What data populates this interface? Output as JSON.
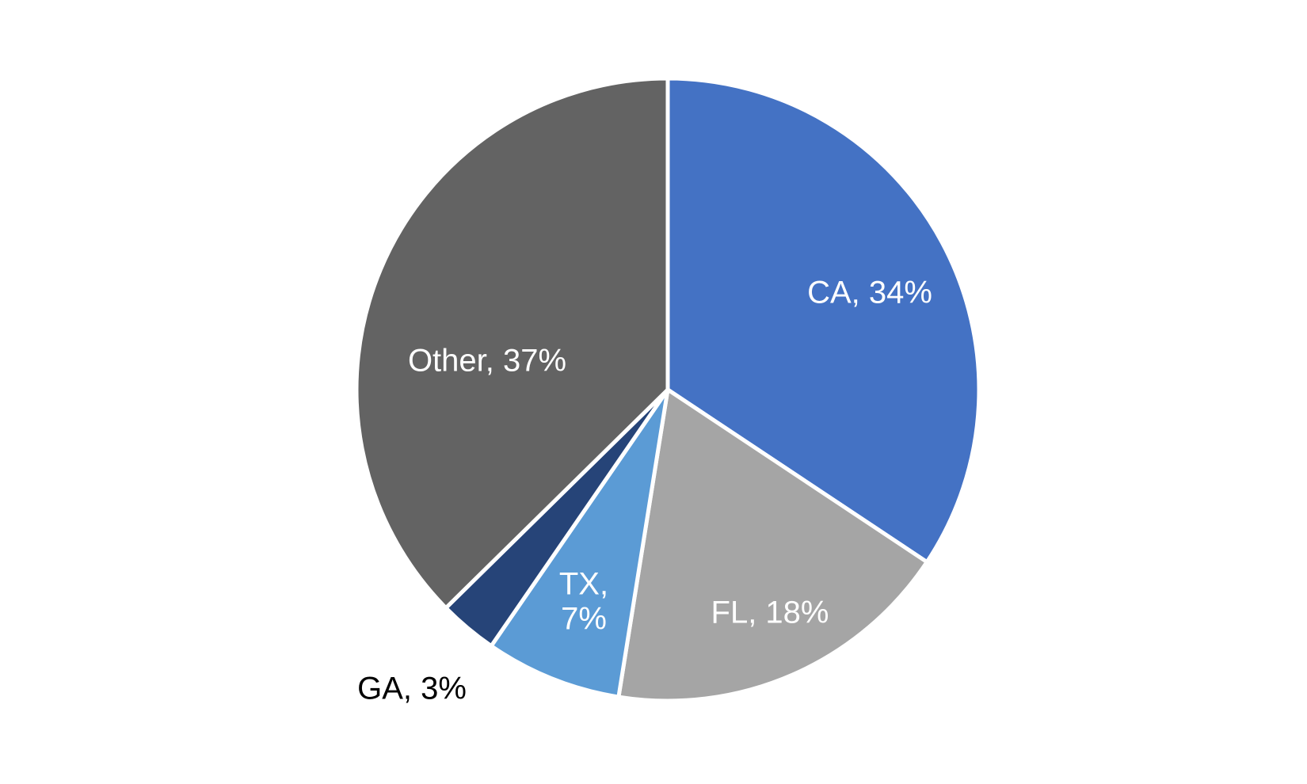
{
  "chart_data": {
    "type": "pie",
    "title": "",
    "start_angle_deg": 0,
    "direction": "clockwise",
    "slices": [
      {
        "label": "CA",
        "value": 34,
        "label_text": "CA, 34%",
        "color": "#4472C4",
        "label_color": "#FFFFFF"
      },
      {
        "label": "FL",
        "value": 18,
        "label_text": "FL, 18%",
        "color": "#A5A5A5",
        "label_color": "#FFFFFF"
      },
      {
        "label": "TX",
        "value": 7,
        "label_text": [
          "TX,",
          "7%"
        ],
        "color": "#5B9BD5",
        "label_color": "#FFFFFF"
      },
      {
        "label": "GA",
        "value": 3,
        "label_text": "GA, 3%",
        "color": "#264478",
        "label_color": "#000000"
      },
      {
        "label": "Other",
        "value": 37,
        "label_text": "Other, 37%",
        "color": "#636363",
        "label_color": "#FFFFFF"
      }
    ],
    "separator_color": "#FFFFFF",
    "legend": "none"
  }
}
